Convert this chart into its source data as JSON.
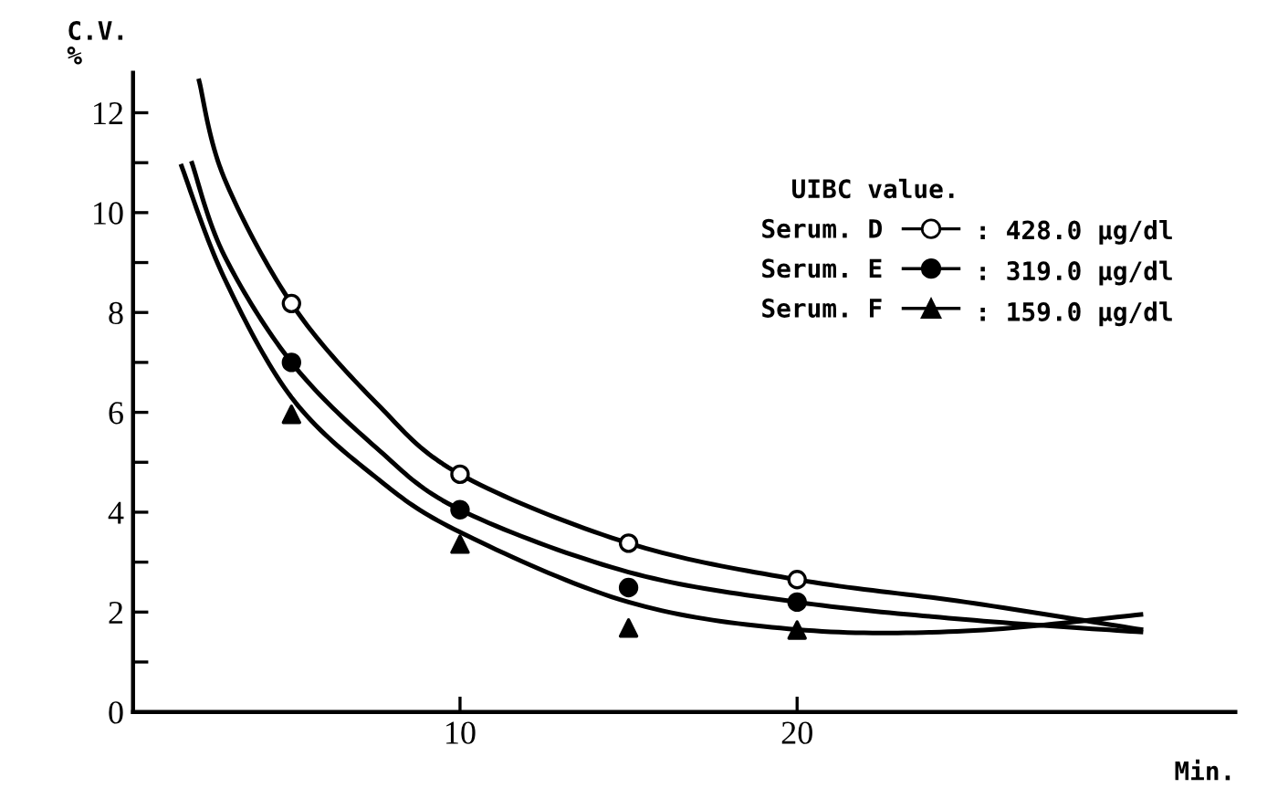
{
  "chart_data": {
    "type": "scatter",
    "ylabel": "C.V.\n%",
    "xlabel": "Min.",
    "legend_title": "UIBC value.",
    "legend": "top right",
    "grid": false,
    "xlim": [
      0.3,
      33
    ],
    "xticks": [
      10,
      20
    ],
    "ylim": [
      0,
      12.8
    ],
    "yticks": [
      0,
      {
        "value": 1,
        "label": null
      },
      2,
      {
        "value": 3,
        "label": null
      },
      4,
      {
        "value": 5,
        "label": null
      },
      6,
      {
        "value": 7,
        "label": null
      },
      8,
      {
        "value": 9,
        "label": null
      },
      10,
      {
        "value": 11,
        "label": null
      },
      12
    ],
    "annotations": [
      ": 428.0 μg/dl",
      ": 319.0 μg/dl",
      ": 159.0 μg/dl"
    ],
    "series": [
      {
        "name": "Serum. D",
        "marker": "circle",
        "color": "#ffffff",
        "x": [
          5,
          10,
          15,
          20
        ],
        "values": [
          8.18,
          4.76,
          3.38,
          2.65
        ]
      },
      {
        "name": "Serum. E",
        "marker": "circle",
        "color": "#000000",
        "x": [
          5,
          10,
          15,
          20
        ],
        "values": [
          7.0,
          4.05,
          2.49,
          2.2
        ]
      },
      {
        "name": "Serum. F",
        "marker": "triangle",
        "color": "#000000",
        "x": [
          5,
          10,
          15,
          20
        ],
        "values": [
          5.96,
          3.36,
          1.68,
          1.64
        ]
      },
      {
        "type": "line",
        "color": "#000000",
        "x": [
          2.26,
          3,
          5,
          7.5,
          10,
          15,
          20,
          25,
          30.2
        ],
        "values": [
          12.64,
          10.7,
          8.18,
          6.2,
          4.76,
          3.38,
          2.65,
          2.2,
          1.65
        ]
      },
      {
        "type": "line",
        "color": "#000000",
        "x": [
          2.05,
          3,
          5,
          7.5,
          10,
          15,
          20,
          25,
          30.2
        ],
        "values": [
          10.99,
          9.15,
          7.0,
          5.3,
          4.05,
          2.8,
          2.2,
          1.85,
          1.6
        ]
      },
      {
        "type": "line",
        "color": "#000000",
        "x": [
          1.74,
          3,
          5,
          7.5,
          10,
          15,
          20,
          25,
          30.2
        ],
        "values": [
          10.93,
          8.7,
          6.3,
          4.7,
          3.6,
          2.2,
          1.65,
          1.62,
          1.95
        ]
      }
    ]
  }
}
